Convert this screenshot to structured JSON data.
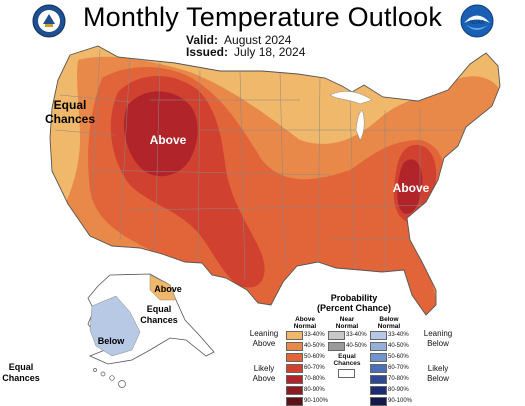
{
  "header": {
    "title": "Monthly Temperature Outlook",
    "valid_label": "Valid:",
    "valid_value": "August 2024",
    "issued_label": "Issued:",
    "issued_value": "July 18, 2024"
  },
  "logos": {
    "left": "doc-seal-icon",
    "right": "noaa-logo-icon",
    "right_text": "NOAA"
  },
  "map_labels": {
    "equal_chances_west": "Equal\nChances",
    "above_west": "Above",
    "above_east": "Above",
    "above_alaska": "Above",
    "equal_chances_alaska": "Equal\nChances",
    "below_alaska": "Below",
    "equal_chances_hawaii": "Equal\nChances"
  },
  "legend": {
    "title": "Probability\n(Percent Chance)",
    "col_above": "Above\nNormal",
    "col_near": "Near\nNormal",
    "col_below": "Below\nNormal",
    "leaning_above": "Leaning\nAbove",
    "likely_above": "Likely\nAbove",
    "leaning_below": "Leaning\nBelow",
    "likely_below": "Likely\nBelow",
    "equal_chances": "Equal\nChances",
    "above": [
      {
        "range": "33-40%",
        "color": "#f0b86a"
      },
      {
        "range": "40-50%",
        "color": "#e8894a"
      },
      {
        "range": "50-60%",
        "color": "#e2653a"
      },
      {
        "range": "60-70%",
        "color": "#d1412f"
      },
      {
        "range": "70-80%",
        "color": "#b1252a"
      },
      {
        "range": "80-90%",
        "color": "#8c1b24"
      },
      {
        "range": "90-100%",
        "color": "#5e1218"
      }
    ],
    "near": [
      {
        "range": "33-40%",
        "color": "#c8c8c8"
      },
      {
        "range": "40-50%",
        "color": "#9a9a9a"
      }
    ],
    "below": [
      {
        "range": "33-40%",
        "color": "#b8c9e6"
      },
      {
        "range": "40-50%",
        "color": "#93b0d9"
      },
      {
        "range": "50-60%",
        "color": "#6f95cc"
      },
      {
        "range": "60-70%",
        "color": "#4a6fb5"
      },
      {
        "range": "70-80%",
        "color": "#2e4a97"
      },
      {
        "range": "80-90%",
        "color": "#1d2d75"
      },
      {
        "range": "90-100%",
        "color": "#121a4d"
      }
    ]
  }
}
